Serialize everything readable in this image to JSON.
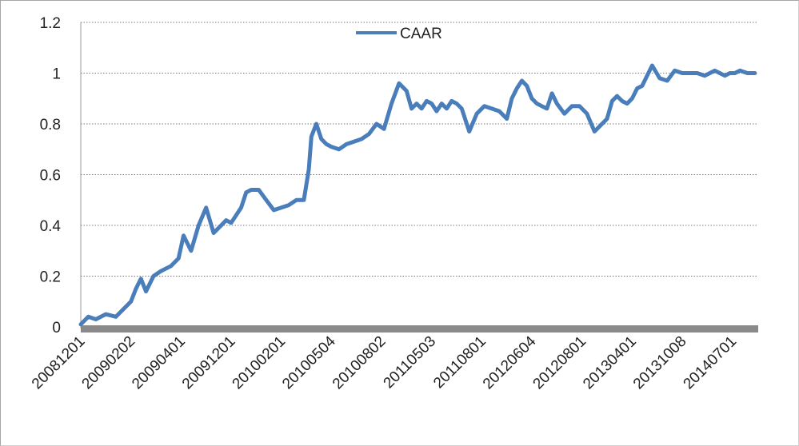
{
  "chart_data": {
    "type": "line",
    "title": "",
    "xlabel": "",
    "ylabel": "",
    "ylim": [
      0,
      1.2
    ],
    "yticks": [
      "0",
      "0.2",
      "0.4",
      "0.6",
      "0.8",
      "1",
      "1.2"
    ],
    "xticks": [
      "20081201",
      "20090202",
      "20090401",
      "20091201",
      "20100201",
      "20100504",
      "20100802",
      "20110503",
      "20110801",
      "20120604",
      "20120801",
      "20130401",
      "20131008",
      "20140701"
    ],
    "legend": "top-center",
    "grid": "horizontal dotted",
    "series": [
      {
        "name": "CAAR",
        "color": "#4a7ebb",
        "x": [
          0,
          0.15,
          0.3,
          0.5,
          0.7,
          0.85,
          1.0,
          1.1,
          1.2,
          1.3,
          1.45,
          1.6,
          1.8,
          1.95,
          2.05,
          2.2,
          2.35,
          2.5,
          2.65,
          2.8,
          2.9,
          3.0,
          3.1,
          3.2,
          3.3,
          3.4,
          3.55,
          3.7,
          3.85,
          4.0,
          4.15,
          4.3,
          4.45,
          4.55,
          4.6,
          4.7,
          4.8,
          4.9,
          5.0,
          5.15,
          5.3,
          5.45,
          5.6,
          5.75,
          5.9,
          6.05,
          6.2,
          6.35,
          6.5,
          6.6,
          6.7,
          6.8,
          6.9,
          7.0,
          7.1,
          7.2,
          7.3,
          7.4,
          7.5,
          7.6,
          7.75,
          7.9,
          8.05,
          8.2,
          8.35,
          8.5,
          8.6,
          8.7,
          8.8,
          8.9,
          9.0,
          9.1,
          9.2,
          9.3,
          9.4,
          9.5,
          9.65,
          9.8,
          9.95,
          10.1,
          10.25,
          10.4,
          10.5,
          10.6,
          10.7,
          10.8,
          10.9,
          11.0,
          11.1,
          11.2,
          11.3,
          11.4,
          11.55,
          11.7,
          11.85,
          12.0,
          12.15,
          12.3,
          12.45,
          12.55,
          12.65,
          12.75,
          12.85,
          12.95,
          13.05,
          13.15,
          13.3,
          13.45
        ],
        "values": [
          0.01,
          0.04,
          0.03,
          0.05,
          0.04,
          0.07,
          0.1,
          0.15,
          0.19,
          0.14,
          0.2,
          0.22,
          0.24,
          0.27,
          0.36,
          0.3,
          0.4,
          0.47,
          0.37,
          0.4,
          0.42,
          0.41,
          0.44,
          0.47,
          0.53,
          0.54,
          0.54,
          0.5,
          0.46,
          0.47,
          0.48,
          0.5,
          0.5,
          0.62,
          0.75,
          0.8,
          0.74,
          0.72,
          0.71,
          0.7,
          0.72,
          0.73,
          0.74,
          0.76,
          0.8,
          0.78,
          0.88,
          0.96,
          0.93,
          0.86,
          0.88,
          0.86,
          0.89,
          0.88,
          0.85,
          0.88,
          0.86,
          0.89,
          0.88,
          0.86,
          0.77,
          0.84,
          0.87,
          0.86,
          0.85,
          0.82,
          0.9,
          0.94,
          0.97,
          0.95,
          0.9,
          0.88,
          0.87,
          0.86,
          0.92,
          0.88,
          0.84,
          0.87,
          0.87,
          0.84,
          0.77,
          0.8,
          0.82,
          0.89,
          0.91,
          0.89,
          0.88,
          0.9,
          0.94,
          0.95,
          0.99,
          1.03,
          0.98,
          0.97,
          1.01,
          1.0,
          1.0,
          1.0,
          0.99,
          1.0,
          1.01,
          1.0,
          0.99,
          1.0,
          1.0,
          1.01,
          1.0,
          1.0
        ]
      }
    ]
  }
}
